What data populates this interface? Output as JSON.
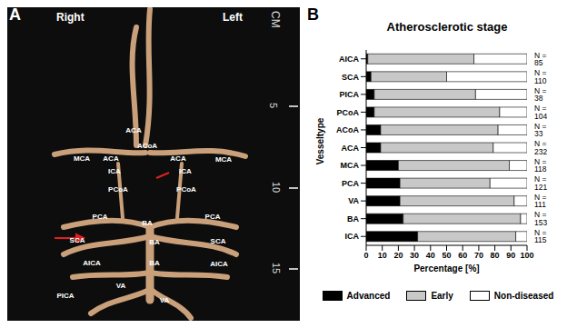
{
  "panel_a": {
    "label": "A",
    "right": "Right",
    "left": "Left",
    "scale_label": "CM",
    "scale_ticks": [
      "5",
      "10",
      "15"
    ],
    "vessel_labels": [
      "ACA",
      "ACoA",
      "ACA",
      "ACA",
      "MCA",
      "MCA",
      "ICA",
      "ICA",
      "PCoA",
      "PCoA",
      "PCA",
      "PCA",
      "BA",
      "BA",
      "BA",
      "SCA",
      "SCA",
      "AICA",
      "AICA",
      "VA",
      "PICA",
      "VA"
    ]
  },
  "panel_b_label": "B",
  "chart_data": {
    "type": "bar",
    "orientation": "horizontal",
    "stacked": true,
    "title": "Atherosclerotic stage",
    "x_label": "Percentage [%]",
    "y_label": "Vesseltype",
    "categories": [
      "AICA",
      "SCA",
      "PICA",
      "PCoA",
      "ACoA",
      "ACA",
      "MCA",
      "PCA",
      "VA",
      "BA",
      "ICA"
    ],
    "n_labels": [
      "N = 85",
      "N = 110",
      "N = 38",
      "N = 104",
      "N = 33",
      "N = 232",
      "N = 118",
      "N = 121",
      "N = 111",
      "N = 153",
      "N = 115"
    ],
    "series": [
      {
        "name": "Advanced",
        "color": "#000000",
        "values": [
          1,
          3,
          5,
          5,
          9,
          9,
          20,
          21,
          21,
          23,
          32
        ]
      },
      {
        "name": "Early",
        "color": "#c8c8c8",
        "values": [
          66,
          47,
          63,
          78,
          73,
          70,
          69,
          56,
          71,
          73,
          61
        ]
      },
      {
        "name": "Non-diseased",
        "color": "#ffffff",
        "values": [
          33,
          50,
          32,
          17,
          18,
          21,
          11,
          23,
          8,
          4,
          7
        ]
      }
    ],
    "xlim": [
      0,
      100
    ],
    "xticks": [
      0,
      10,
      20,
      30,
      40,
      50,
      60,
      70,
      80,
      90,
      100
    ],
    "grid": false,
    "legend": "bottom"
  }
}
